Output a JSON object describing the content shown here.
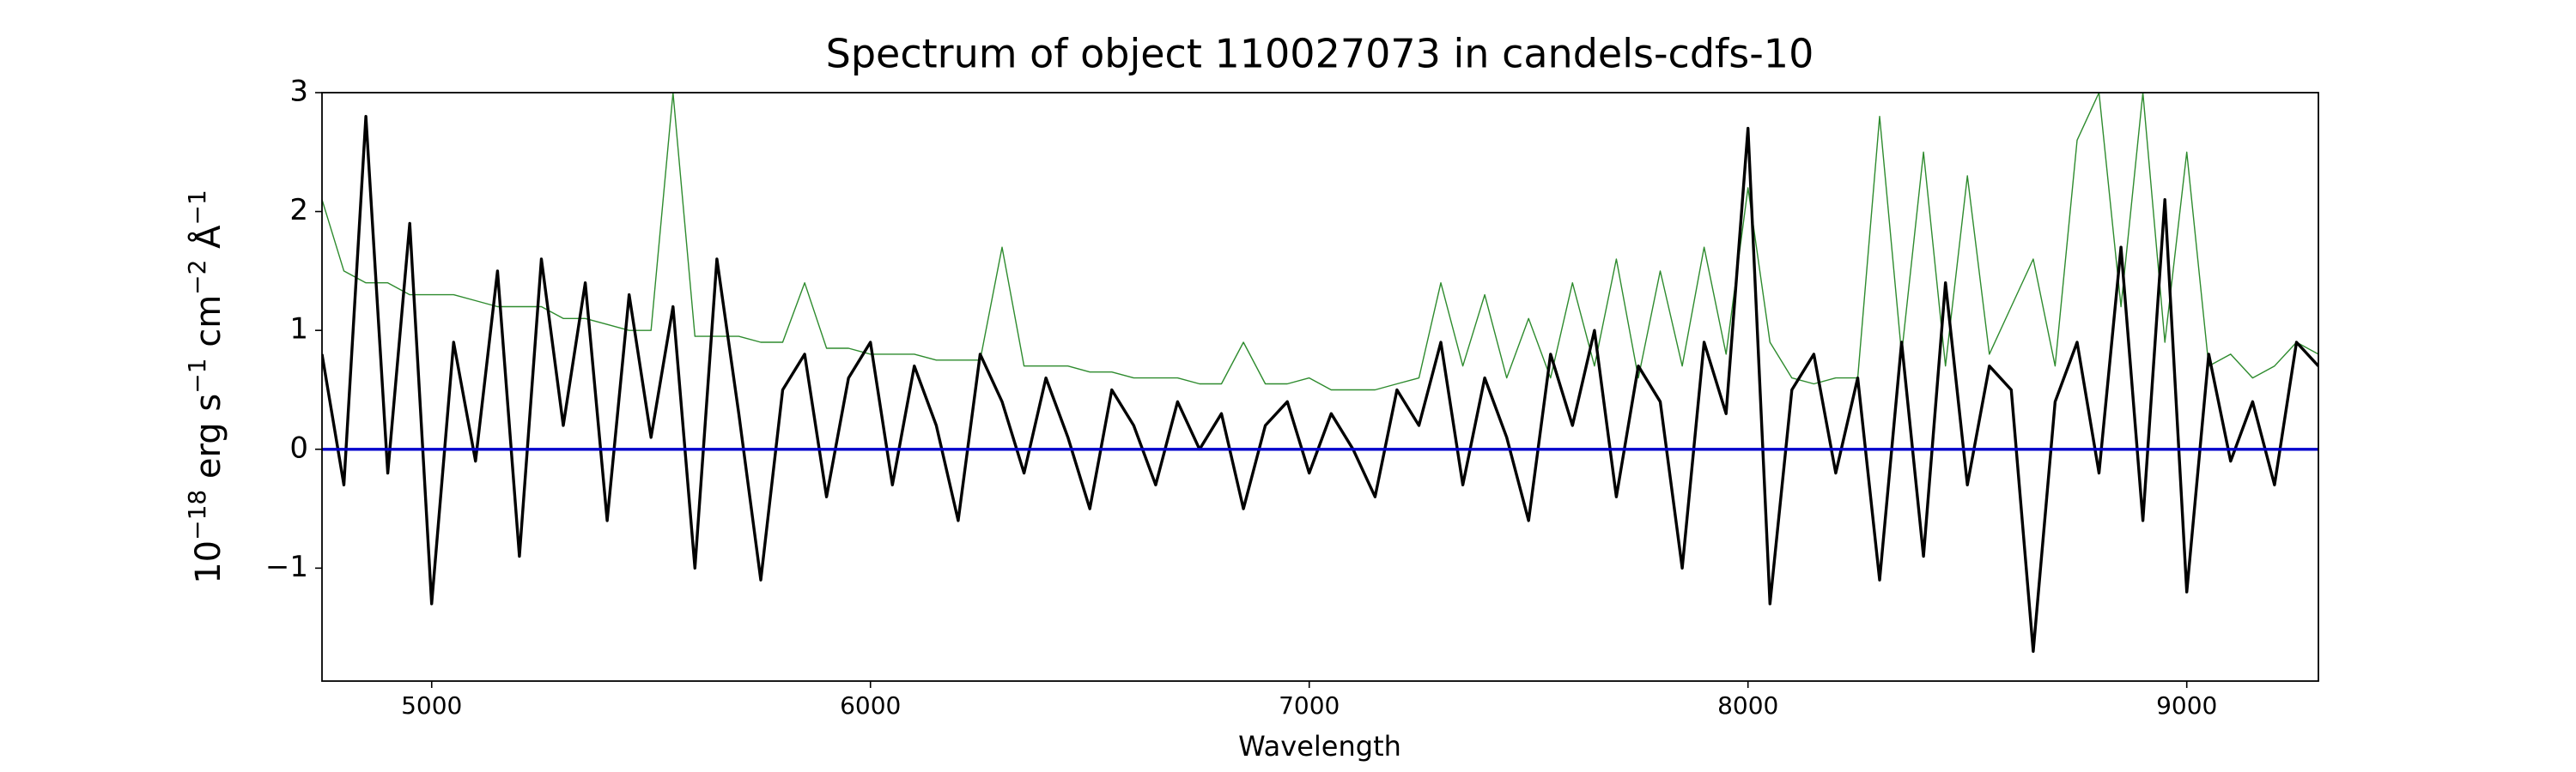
{
  "chart_data": {
    "type": "line",
    "title": "Spectrum of object 110027073 in candels-cdfs-10",
    "xlabel": "Wavelength",
    "ylabel_parts": [
      [
        "10",
        "−18"
      ],
      [
        " erg s",
        "−1"
      ],
      [
        " cm",
        "−2"
      ],
      [
        " Å",
        "−1"
      ]
    ],
    "xlim": [
      4750,
      9300
    ],
    "ylim": [
      -1.95,
      3
    ],
    "xticks": [
      5000,
      6000,
      7000,
      8000,
      9000
    ],
    "yticks": [
      {
        "value": -1,
        "label": "−1"
      },
      0,
      1,
      2,
      3
    ],
    "x": [
      4750,
      4800,
      4850,
      4900,
      4950,
      5000,
      5050,
      5100,
      5150,
      5200,
      5250,
      5300,
      5350,
      5400,
      5450,
      5500,
      5550,
      5600,
      5650,
      5700,
      5750,
      5800,
      5850,
      5900,
      5950,
      6000,
      6050,
      6100,
      6150,
      6200,
      6250,
      6300,
      6350,
      6400,
      6450,
      6500,
      6550,
      6600,
      6650,
      6700,
      6750,
      6800,
      6850,
      6900,
      6950,
      7000,
      7050,
      7100,
      7150,
      7200,
      7250,
      7300,
      7350,
      7400,
      7450,
      7500,
      7550,
      7600,
      7650,
      7700,
      7750,
      7800,
      7850,
      7900,
      7950,
      8000,
      8050,
      8100,
      8150,
      8200,
      8250,
      8300,
      8350,
      8400,
      8450,
      8500,
      8550,
      8600,
      8650,
      8700,
      8750,
      8800,
      8850,
      8900,
      8950,
      9000,
      9050,
      9100,
      9150,
      9200,
      9250,
      9300
    ],
    "series": [
      {
        "color": "#2e8b2e",
        "values": [
          2.1,
          1.5,
          1.4,
          1.4,
          1.3,
          1.3,
          1.3,
          1.25,
          1.2,
          1.2,
          1.2,
          1.1,
          1.1,
          1.05,
          1.0,
          1.0,
          3.0,
          0.95,
          0.95,
          0.95,
          0.9,
          0.9,
          1.4,
          0.85,
          0.85,
          0.8,
          0.8,
          0.8,
          0.75,
          0.75,
          0.75,
          1.7,
          0.7,
          0.7,
          0.7,
          0.65,
          0.65,
          0.6,
          0.6,
          0.6,
          0.55,
          0.55,
          0.9,
          0.55,
          0.55,
          0.6,
          0.5,
          0.5,
          0.5,
          0.55,
          0.6,
          1.4,
          0.7,
          1.3,
          0.6,
          1.1,
          0.6,
          1.4,
          0.7,
          1.6,
          0.6,
          1.5,
          0.7,
          1.7,
          0.8,
          2.2,
          0.9,
          0.6,
          0.55,
          0.6,
          0.6,
          2.8,
          0.8,
          2.5,
          0.7,
          2.3,
          0.8,
          1.2,
          1.6,
          0.7,
          2.6,
          3.0,
          1.2,
          3.0,
          0.9,
          2.5,
          0.7,
          0.8,
          0.6,
          0.7,
          0.9,
          0.8
        ]
      },
      {
        "color": "#000000",
        "values": [
          0.8,
          -0.3,
          2.8,
          -0.2,
          1.9,
          -1.3,
          0.9,
          -0.1,
          1.5,
          -0.9,
          1.6,
          0.2,
          1.4,
          -0.6,
          1.3,
          0.1,
          1.2,
          -1.0,
          1.6,
          0.3,
          -1.1,
          0.5,
          0.8,
          -0.4,
          0.6,
          0.9,
          -0.3,
          0.7,
          0.2,
          -0.6,
          0.8,
          0.4,
          -0.2,
          0.6,
          0.1,
          -0.5,
          0.5,
          0.2,
          -0.3,
          0.4,
          0.0,
          0.3,
          -0.5,
          0.2,
          0.4,
          -0.2,
          0.3,
          0.0,
          -0.4,
          0.5,
          0.2,
          0.9,
          -0.3,
          0.6,
          0.1,
          -0.6,
          0.8,
          0.2,
          1.0,
          -0.4,
          0.7,
          0.4,
          -1.0,
          0.9,
          0.3,
          2.7,
          -1.3,
          0.5,
          0.8,
          -0.2,
          0.6,
          -1.1,
          0.9,
          -0.9,
          1.4,
          -0.3,
          0.7,
          0.5,
          -1.7,
          0.4,
          0.9,
          -0.2,
          1.7,
          -0.6,
          2.1,
          -1.2,
          0.8,
          -0.1,
          0.4,
          -0.3,
          0.9,
          0.7
        ]
      },
      {
        "color": "#0000cc",
        "x": [
          4750,
          9300
        ],
        "values": [
          0,
          0
        ]
      }
    ]
  }
}
